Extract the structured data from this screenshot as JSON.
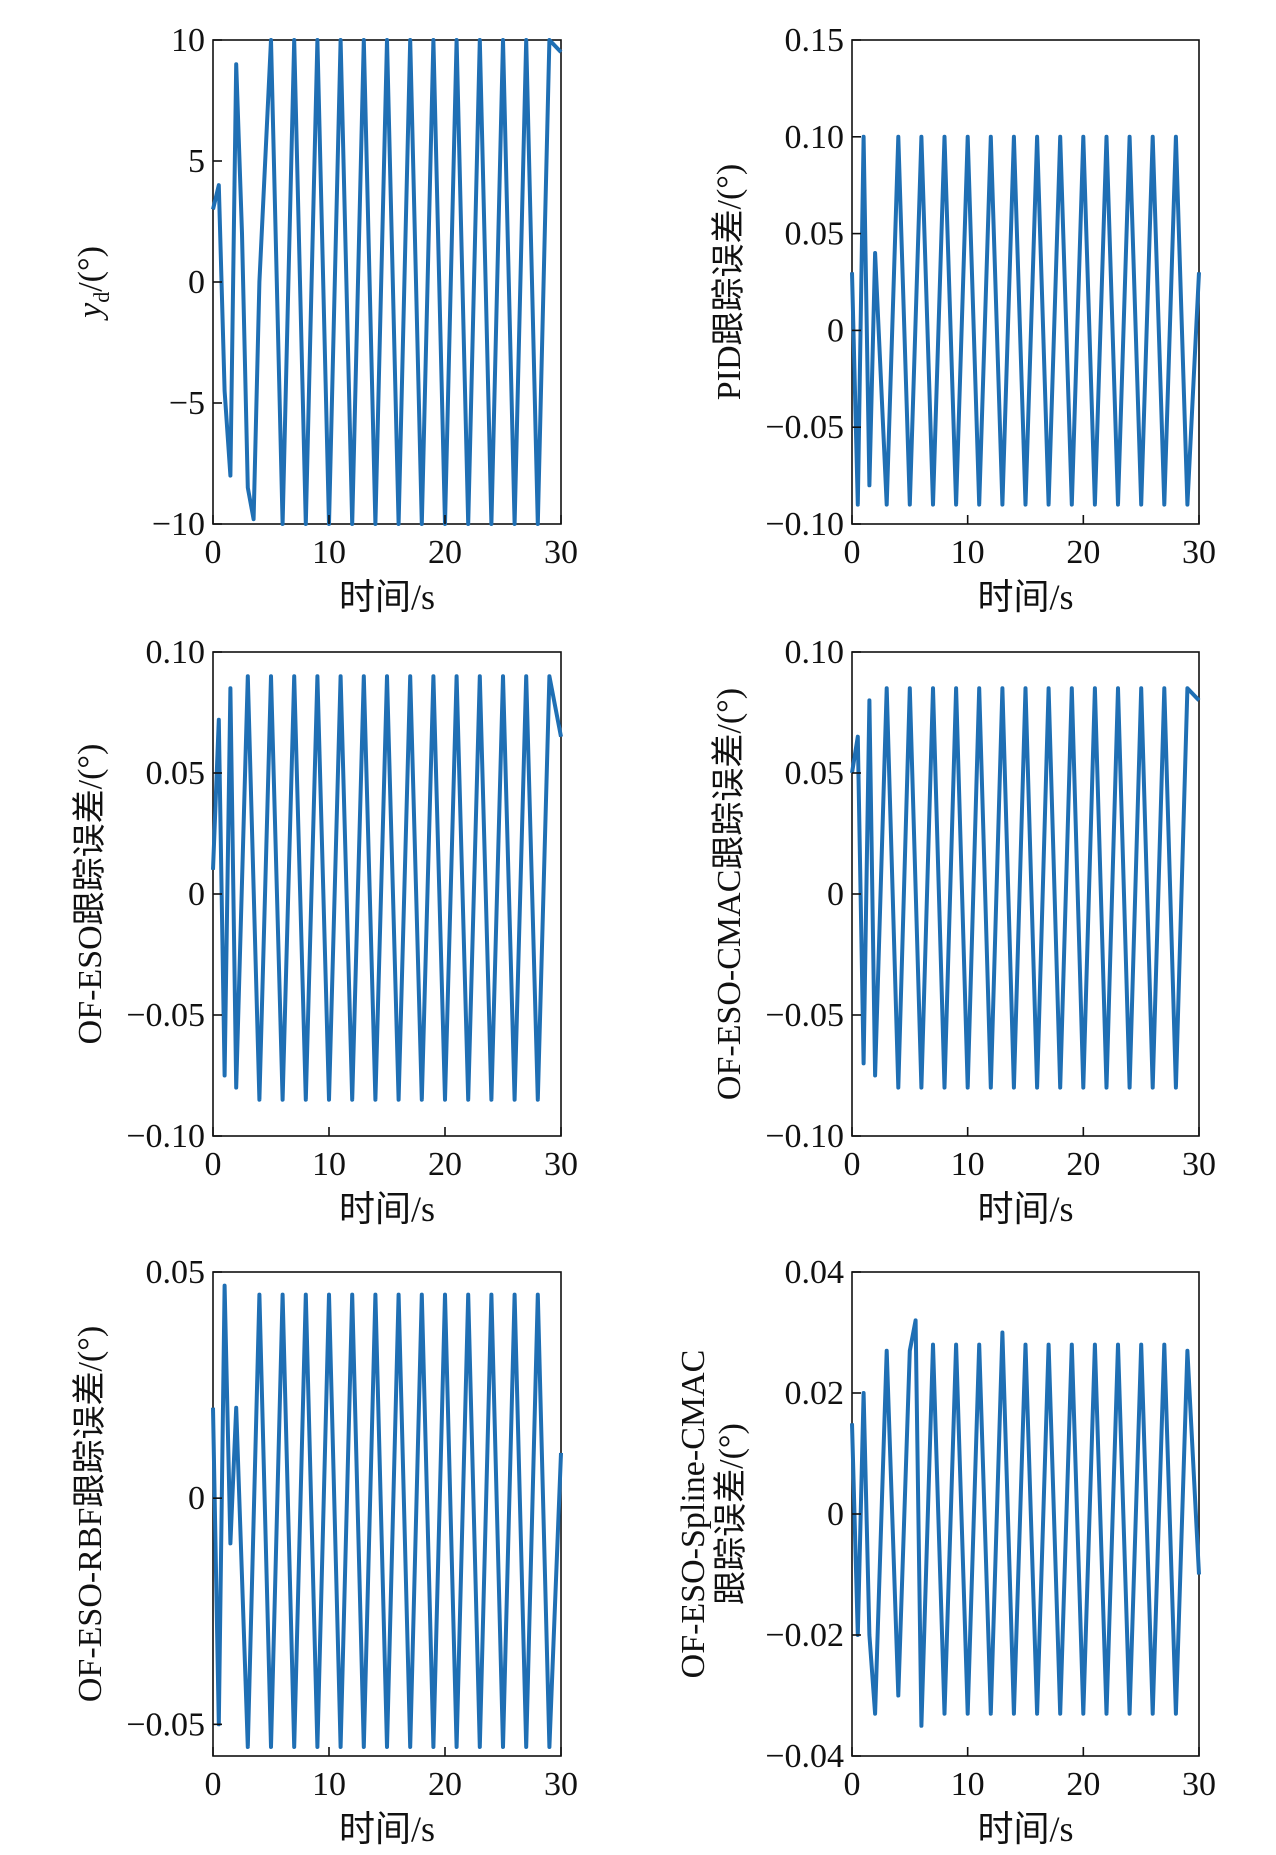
{
  "figure": {
    "line_color": "#1f6fb4",
    "axis_color": "#111111"
  },
  "chart_data": [
    {
      "id": "yd",
      "type": "line",
      "title": "",
      "xlabel": "时间/s",
      "ylabel_parts": [
        "y",
        "d",
        "/(°)"
      ],
      "xlim": [
        0,
        30
      ],
      "ylim": [
        -10,
        10
      ],
      "xticks": [
        "0",
        "10",
        "20",
        "30"
      ],
      "yticks": [
        "−10",
        "−5",
        "0",
        "5",
        "10"
      ],
      "ytick_values": [
        -10,
        -5,
        0,
        5,
        10
      ],
      "grid": false,
      "series": [
        {
          "x": [
            0,
            0.5,
            1.0,
            1.5,
            2.0,
            2.5,
            3.0,
            3.5,
            4.0,
            5.0,
            6.0,
            7.0,
            8.0,
            9.0,
            10.0,
            11.0,
            12.0,
            13.0,
            14.0,
            15.0,
            16.0,
            17.0,
            18.0,
            19.0,
            20.0,
            21.0,
            22.0,
            23.0,
            24.0,
            25.0,
            26.0,
            27.0,
            28.0,
            29.0,
            30.0
          ],
          "y": [
            3.0,
            4.0,
            -4.5,
            -8.0,
            9.0,
            2.0,
            -8.5,
            -9.8,
            0,
            10,
            -10,
            10,
            -10,
            10,
            -10,
            10,
            -10,
            10,
            -10,
            10,
            -10,
            10,
            -10,
            10,
            -10,
            10,
            -10,
            10,
            -10,
            10,
            -10,
            10,
            -10,
            10,
            9.5
          ]
        }
      ]
    },
    {
      "id": "pid",
      "type": "line",
      "title": "",
      "xlabel": "时间/s",
      "ylabel": "PID跟踪误差/(°)",
      "xlim": [
        0,
        30
      ],
      "ylim": [
        -0.1,
        0.15
      ],
      "xticks": [
        "0",
        "10",
        "20",
        "30"
      ],
      "yticks": [
        "−0.10",
        "−0.05",
        "0",
        "0.05",
        "0.10",
        "0.15"
      ],
      "ytick_values": [
        -0.1,
        -0.05,
        0,
        0.05,
        0.1,
        0.15
      ],
      "grid": false,
      "series": [
        {
          "x": [
            0,
            0.5,
            1.0,
            1.5,
            2.0,
            3.0,
            4.0,
            5.0,
            6.0,
            7.0,
            8.0,
            9.0,
            10.0,
            11.0,
            12.0,
            13.0,
            14.0,
            15.0,
            16.0,
            17.0,
            18.0,
            19.0,
            20.0,
            21.0,
            22.0,
            23.0,
            24.0,
            25.0,
            26.0,
            27.0,
            28.0,
            29.0,
            30.0
          ],
          "y": [
            0.03,
            -0.09,
            0.1,
            -0.08,
            0.04,
            -0.09,
            0.1,
            -0.09,
            0.1,
            -0.09,
            0.1,
            -0.09,
            0.1,
            -0.09,
            0.1,
            -0.09,
            0.1,
            -0.09,
            0.1,
            -0.09,
            0.1,
            -0.09,
            0.1,
            -0.09,
            0.1,
            -0.09,
            0.1,
            -0.09,
            0.1,
            -0.09,
            0.1,
            -0.09,
            0.03
          ]
        }
      ]
    },
    {
      "id": "ofeso",
      "type": "line",
      "title": "",
      "xlabel": "时间/s",
      "ylabel": "OF-ESO跟踪误差/(°)",
      "xlim": [
        0,
        30
      ],
      "ylim": [
        -0.1,
        0.1
      ],
      "xticks": [
        "0",
        "10",
        "20",
        "30"
      ],
      "yticks": [
        "−0.10",
        "−0.05",
        "0",
        "0.05",
        "0.10"
      ],
      "ytick_values": [
        -0.1,
        -0.05,
        0,
        0.05,
        0.1
      ],
      "grid": false,
      "series": [
        {
          "x": [
            0,
            0.5,
            1.0,
            1.5,
            2.0,
            3.0,
            4.0,
            5.0,
            6.0,
            7.0,
            8.0,
            9.0,
            10.0,
            11.0,
            12.0,
            13.0,
            14.0,
            15.0,
            16.0,
            17.0,
            18.0,
            19.0,
            20.0,
            21.0,
            22.0,
            23.0,
            24.0,
            25.0,
            26.0,
            27.0,
            28.0,
            29.0,
            30.0
          ],
          "y": [
            0.01,
            0.072,
            -0.075,
            0.085,
            -0.08,
            0.09,
            -0.085,
            0.09,
            -0.085,
            0.09,
            -0.085,
            0.09,
            -0.085,
            0.09,
            -0.085,
            0.09,
            -0.085,
            0.09,
            -0.085,
            0.09,
            -0.085,
            0.09,
            -0.085,
            0.09,
            -0.085,
            0.09,
            -0.085,
            0.09,
            -0.085,
            0.09,
            -0.085,
            0.09,
            0.065
          ]
        }
      ]
    },
    {
      "id": "cmac",
      "type": "line",
      "title": "",
      "xlabel": "时间/s",
      "ylabel": "OF-ESO-CMAC跟踪误差/(°)",
      "xlim": [
        0,
        30
      ],
      "ylim": [
        -0.1,
        0.1
      ],
      "xticks": [
        "0",
        "10",
        "20",
        "30"
      ],
      "yticks": [
        "−0.10",
        "−0.05",
        "0",
        "0.05",
        "0.10"
      ],
      "ytick_values": [
        -0.1,
        -0.05,
        0,
        0.05,
        0.1
      ],
      "grid": false,
      "series": [
        {
          "x": [
            0,
            0.5,
            1.0,
            1.5,
            2.0,
            3.0,
            4.0,
            5.0,
            6.0,
            7.0,
            8.0,
            9.0,
            10.0,
            11.0,
            12.0,
            13.0,
            14.0,
            15.0,
            16.0,
            17.0,
            18.0,
            19.0,
            20.0,
            21.0,
            22.0,
            23.0,
            24.0,
            25.0,
            26.0,
            27.0,
            28.0,
            29.0,
            30.0
          ],
          "y": [
            0.05,
            0.065,
            -0.07,
            0.08,
            -0.075,
            0.085,
            -0.08,
            0.085,
            -0.08,
            0.085,
            -0.08,
            0.085,
            -0.08,
            0.085,
            -0.08,
            0.085,
            -0.08,
            0.085,
            -0.08,
            0.085,
            -0.08,
            0.085,
            -0.08,
            0.085,
            -0.08,
            0.085,
            -0.08,
            0.085,
            -0.08,
            0.085,
            -0.08,
            0.085,
            0.08
          ]
        }
      ]
    },
    {
      "id": "rbf",
      "type": "line",
      "title": "",
      "xlabel": "时间/s",
      "ylabel": "OF-ESO-RBF跟踪误差/(°)",
      "xlim": [
        0,
        30
      ],
      "ylim": [
        -0.057,
        0.05
      ],
      "xticks": [
        "0",
        "10",
        "20",
        "30"
      ],
      "yticks": [
        "−0.05",
        "0",
        "0.05"
      ],
      "ytick_values": [
        -0.05,
        0,
        0.05
      ],
      "grid": false,
      "series": [
        {
          "x": [
            0,
            0.5,
            1.0,
            1.5,
            2.0,
            3.0,
            4.0,
            5.0,
            6.0,
            7.0,
            8.0,
            9.0,
            10.0,
            11.0,
            12.0,
            13.0,
            14.0,
            15.0,
            16.0,
            17.0,
            18.0,
            19.0,
            20.0,
            21.0,
            22.0,
            23.0,
            24.0,
            25.0,
            26.0,
            27.0,
            28.0,
            29.0,
            30.0
          ],
          "y": [
            0.02,
            -0.05,
            0.047,
            -0.01,
            0.02,
            -0.055,
            0.045,
            -0.055,
            0.045,
            -0.055,
            0.045,
            -0.055,
            0.045,
            -0.055,
            0.045,
            -0.055,
            0.045,
            -0.055,
            0.045,
            -0.055,
            0.045,
            -0.055,
            0.045,
            -0.055,
            0.045,
            -0.055,
            0.045,
            -0.055,
            0.045,
            -0.055,
            0.045,
            -0.055,
            0.01
          ]
        }
      ]
    },
    {
      "id": "spline",
      "type": "line",
      "title": "",
      "xlabel": "时间/s",
      "ylabel_lines": [
        "OF-ESO-Spline-CMAC",
        "跟踪误差/(°)"
      ],
      "xlim": [
        0,
        30
      ],
      "ylim": [
        -0.04,
        0.04
      ],
      "xticks": [
        "0",
        "10",
        "20",
        "30"
      ],
      "yticks": [
        "−0.04",
        "−0.02",
        "0",
        "0.02",
        "0.04"
      ],
      "ytick_values": [
        -0.04,
        -0.02,
        0,
        0.02,
        0.04
      ],
      "grid": false,
      "series": [
        {
          "x": [
            0,
            0.5,
            1.0,
            1.5,
            2.0,
            3.0,
            4.0,
            5.0,
            5.5,
            6.0,
            7.0,
            8.0,
            9.0,
            10.0,
            11.0,
            12.0,
            13.0,
            14.0,
            15.0,
            16.0,
            17.0,
            18.0,
            19.0,
            20.0,
            21.0,
            22.0,
            23.0,
            24.0,
            25.0,
            26.0,
            27.0,
            28.0,
            29.0,
            30.0
          ],
          "y": [
            0.015,
            -0.02,
            0.02,
            -0.02,
            -0.033,
            0.027,
            -0.03,
            0.027,
            0.032,
            -0.035,
            0.028,
            -0.033,
            0.028,
            -0.033,
            0.028,
            -0.033,
            0.03,
            -0.033,
            0.028,
            -0.033,
            0.028,
            -0.033,
            0.028,
            -0.033,
            0.028,
            -0.033,
            0.028,
            -0.033,
            0.028,
            -0.033,
            0.028,
            -0.033,
            0.027,
            -0.01
          ]
        }
      ]
    }
  ]
}
